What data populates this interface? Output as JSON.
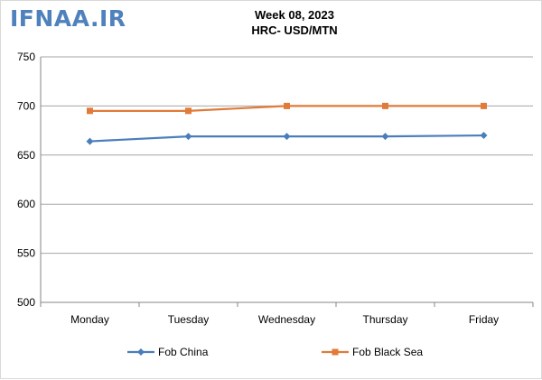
{
  "watermark": "IFNAA.IR",
  "chart_data": {
    "type": "line",
    "title": "Week 08, 2023",
    "subtitle": "HRC- USD/MTN",
    "categories": [
      "Monday",
      "Tuesday",
      "Wednesday",
      "Thursday",
      "Friday"
    ],
    "series": [
      {
        "name": "Fob China",
        "color": "#4a7ebb",
        "marker": "diamond",
        "values": [
          664,
          669,
          669,
          669,
          670
        ]
      },
      {
        "name": "Fob Black Sea",
        "color": "#e07b39",
        "marker": "square",
        "values": [
          695,
          695,
          700,
          700,
          700
        ]
      }
    ],
    "ylim": [
      500,
      750
    ],
    "yticks": [
      500,
      550,
      600,
      650,
      700,
      750
    ],
    "grid": true,
    "legend": "bottom",
    "xlabel": "",
    "ylabel": ""
  }
}
